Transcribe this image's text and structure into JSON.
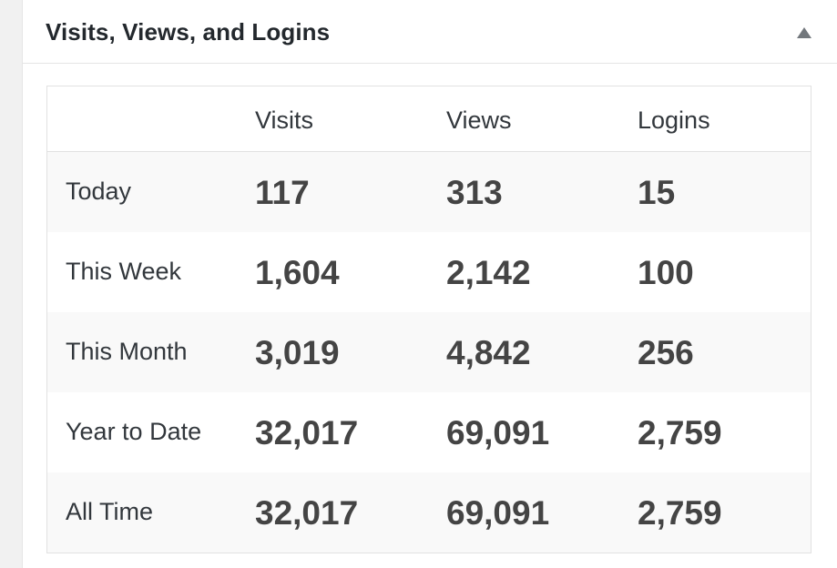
{
  "widget": {
    "title": "Visits, Views, and Logins",
    "toggle_icon": "triangle-up-icon"
  },
  "table": {
    "columns": [
      "",
      "Visits",
      "Views",
      "Logins"
    ],
    "rows": [
      {
        "label": "Today",
        "visits": "117",
        "views": "313",
        "logins": "15"
      },
      {
        "label": "This Week",
        "visits": "1,604",
        "views": "2,142",
        "logins": "100"
      },
      {
        "label": "This Month",
        "visits": "3,019",
        "views": "4,842",
        "logins": "256"
      },
      {
        "label": "Year to Date",
        "visits": "32,017",
        "views": "69,091",
        "logins": "2,759"
      },
      {
        "label": "All Time",
        "visits": "32,017",
        "views": "69,091",
        "logins": "2,759"
      }
    ]
  }
}
